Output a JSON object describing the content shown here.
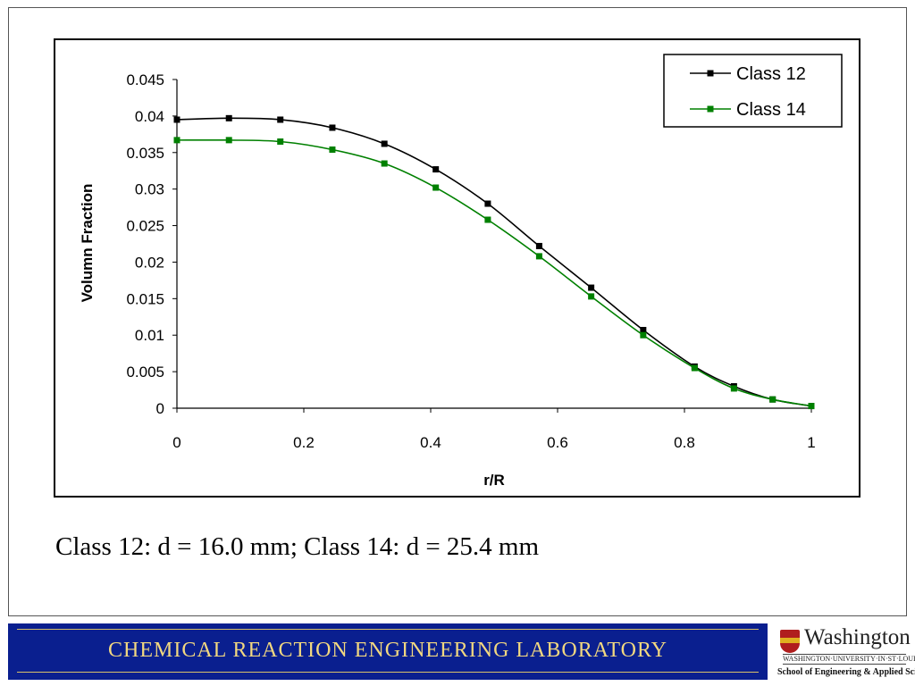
{
  "chart_data": {
    "type": "line",
    "title": "",
    "xlabel": "r/R",
    "ylabel": "Volumn Fraction",
    "xlim": [
      0,
      1
    ],
    "ylim": [
      0,
      0.045
    ],
    "x_ticks": [
      "0",
      "0.2",
      "0.4",
      "0.6",
      "0.8",
      "1"
    ],
    "y_ticks": [
      "0",
      "0.005",
      "0.01",
      "0.015",
      "0.02",
      "0.025",
      "0.03",
      "0.035",
      "0.04",
      "0.045"
    ],
    "grid": false,
    "legend_position": "top-right",
    "series": [
      {
        "name": "Class 12",
        "color": "#000000",
        "x": [
          0,
          0.082,
          0.163,
          0.245,
          0.327,
          0.408,
          0.49,
          0.571,
          0.653,
          0.735,
          0.816,
          0.878,
          0.939,
          1.0
        ],
        "y": [
          0.0395,
          0.0397,
          0.0395,
          0.0384,
          0.0362,
          0.0327,
          0.028,
          0.0222,
          0.0165,
          0.0107,
          0.0057,
          0.003,
          0.0012,
          0.0003
        ]
      },
      {
        "name": "Class 14",
        "color": "#008000",
        "x": [
          0,
          0.082,
          0.163,
          0.245,
          0.327,
          0.408,
          0.49,
          0.571,
          0.653,
          0.735,
          0.816,
          0.878,
          0.939,
          1.0
        ],
        "y": [
          0.0367,
          0.0367,
          0.0365,
          0.0354,
          0.0335,
          0.0302,
          0.0258,
          0.0208,
          0.0153,
          0.01,
          0.0055,
          0.0027,
          0.0012,
          0.0003
        ]
      }
    ]
  },
  "caption": "Class 12: d = 16.0 mm; Class 14: d = 25.4 mm",
  "footer": {
    "banner_text": "CHEMICAL  REACTION  ENGINEERING  LABORATORY",
    "banner_color": "#0a1f8f",
    "text_color": "#f2d880"
  },
  "logo": {
    "name": "Washington",
    "line1": "WASHINGTON·UNIVERSITY·IN·ST·LOUIS",
    "line2": "School of Engineering & Applied Science"
  }
}
